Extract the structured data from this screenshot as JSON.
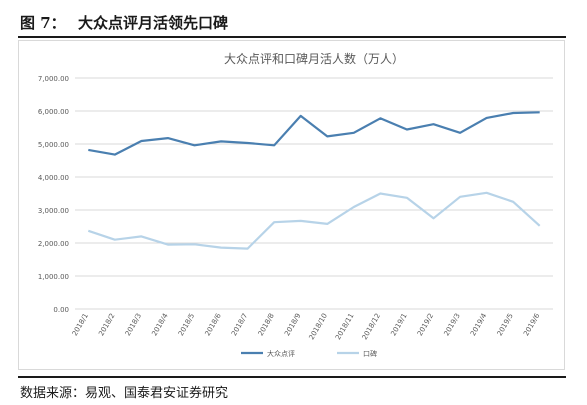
{
  "figure": {
    "number": "图  7：",
    "title": "大众点评月活领先口碑",
    "source": "数据来源：易观、国泰君安证券研究"
  },
  "colors": {
    "series_1": "#4a7fb0",
    "series_2": "#b7d3e8",
    "grid": "#d9d9d9",
    "text": "#595959"
  },
  "chart_data": {
    "type": "line",
    "title": "大众点评和口碑月活人数（万人）",
    "xlabel": "",
    "ylabel": "",
    "ylim": [
      0,
      7000
    ],
    "y_ticks": [
      0,
      1000,
      2000,
      3000,
      4000,
      5000,
      6000,
      7000
    ],
    "y_tick_labels": [
      "0.00",
      "1,000.00",
      "2,000.00",
      "3,000.00",
      "4,000.00",
      "5,000.00",
      "6,000.00",
      "7,000.00"
    ],
    "grid": true,
    "legend_position": "bottom",
    "categories": [
      "2018/1",
      "2018/2",
      "2018/3",
      "2018/4",
      "2018/5",
      "2018/6",
      "2018/7",
      "2018/8",
      "2018/9",
      "2018/10",
      "2018/11",
      "2018/12",
      "2019/1",
      "2019/2",
      "2019/3",
      "2019/4",
      "2019/5",
      "2019/6"
    ],
    "series": [
      {
        "name": "大众点评",
        "values": [
          4820,
          4680,
          5090,
          5180,
          4960,
          5080,
          5030,
          4960,
          5850,
          5230,
          5340,
          5780,
          5440,
          5600,
          5340,
          5790,
          5940,
          5960
        ]
      },
      {
        "name": "口碑",
        "values": [
          2370,
          2100,
          2200,
          1950,
          1960,
          1860,
          1830,
          2630,
          2670,
          2580,
          3090,
          3500,
          3370,
          2750,
          3400,
          3520,
          3250,
          2520
        ]
      }
    ]
  }
}
